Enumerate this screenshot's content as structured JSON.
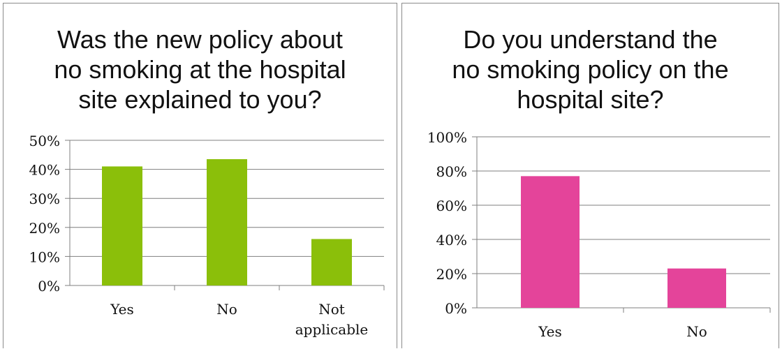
{
  "colors": {
    "chart1_bar": "#8bbf0a",
    "chart2_bar": "#e4449a",
    "grid": "#7f7f7f"
  },
  "chart_data": [
    {
      "type": "bar",
      "title": "Was the new policy about\nno smoking at the hospital\nsite explained to you?",
      "categories": [
        "Yes",
        "No",
        "Not\napplicable"
      ],
      "values": [
        0.41,
        0.435,
        0.16
      ],
      "ylim": [
        0,
        0.5
      ],
      "yticks": [
        "0%",
        "10%",
        "20%",
        "30%",
        "40%",
        "50%"
      ],
      "grid": true,
      "legend": "none"
    },
    {
      "type": "bar",
      "title": "Do you understand the\nno smoking policy on the\nhospital site?",
      "categories": [
        "Yes",
        "No"
      ],
      "values": [
        0.77,
        0.23
      ],
      "ylim": [
        0,
        1.0
      ],
      "yticks": [
        "0%",
        "20%",
        "40%",
        "60%",
        "80%",
        "100%"
      ],
      "grid": true,
      "legend": "none"
    }
  ]
}
